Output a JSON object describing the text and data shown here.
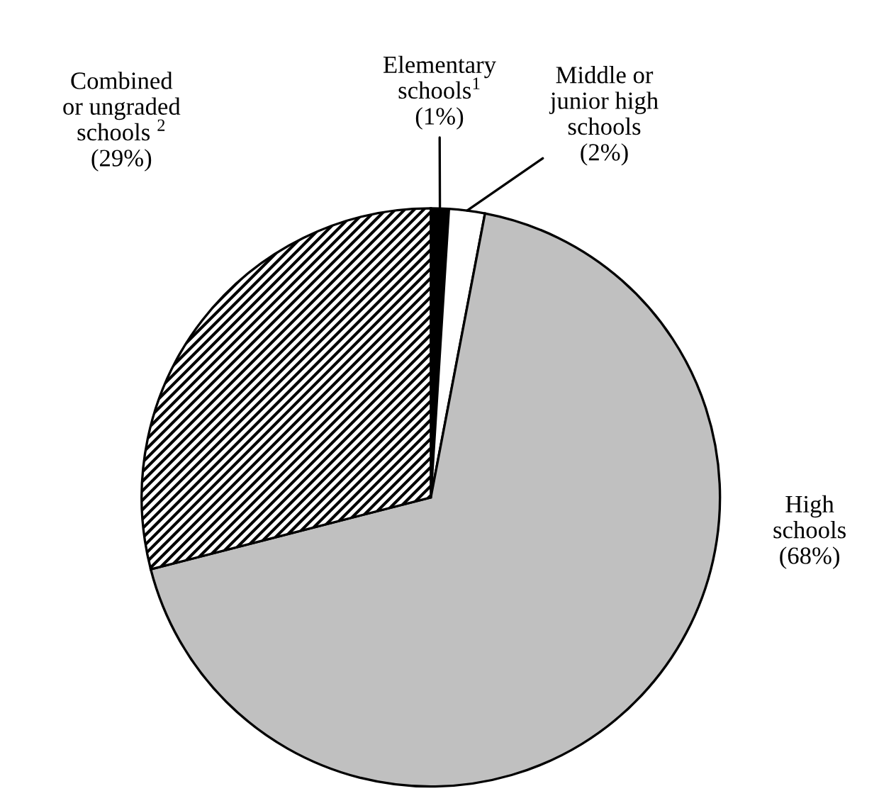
{
  "chart_data": {
    "type": "pie",
    "categories": [
      "Elementary\nschools$^{1}$",
      "Middle or\njunior high\nschools",
      "High\nschools",
      "Combined\nor ungraded\nschools $^{2}$"
    ],
    "values": [
      1,
      2,
      68,
      29
    ],
    "colors": [
      "#000000",
      "#ffffff",
      "#c0c0c0",
      "#000000"
    ],
    "value_labels": [
      "(1%)",
      "(2%)",
      "(68%)",
      "(29%)"
    ],
    "legend": false
  }
}
